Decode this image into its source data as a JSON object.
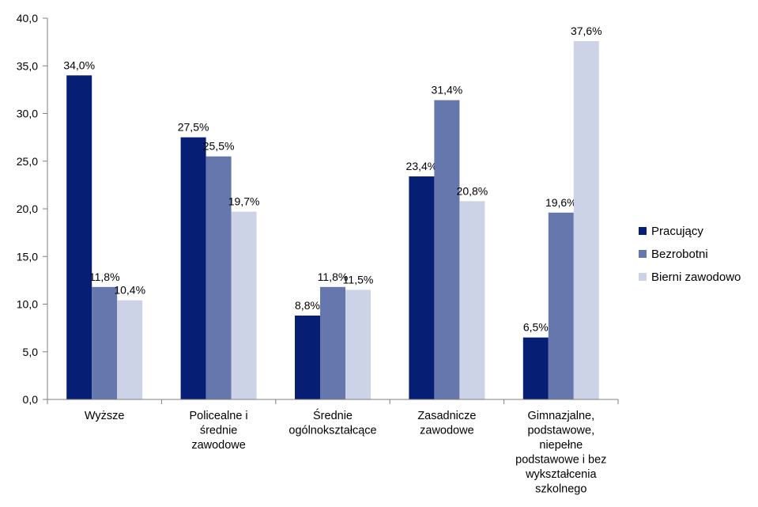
{
  "chart_data": {
    "type": "bar",
    "categories": [
      [
        "Wyższe"
      ],
      [
        "Policealne i",
        "średnie",
        "zawodowe"
      ],
      [
        "Średnie",
        "ogólnokształcące"
      ],
      [
        "Zasadnicze",
        "zawodowe"
      ],
      [
        "Gimnazjalne,",
        "podstawowe,",
        "niepełne",
        "podstawowe i bez",
        "wykształcenia",
        "szkolnego"
      ]
    ],
    "series": [
      {
        "name": "Pracujący",
        "color": "#061f74",
        "values": [
          34.0,
          27.5,
          8.8,
          23.4,
          6.5
        ],
        "labels": [
          "34,0%",
          "27,5%",
          "8,8%",
          "23,4%",
          "6,5%"
        ]
      },
      {
        "name": "Bezrobotni",
        "color": "#6677ae",
        "values": [
          11.8,
          25.5,
          11.8,
          31.4,
          19.6
        ],
        "labels": [
          "11,8%",
          "25,5%",
          "11,8%",
          "31,4%",
          "19,6%"
        ]
      },
      {
        "name": "Bierni zawodowo",
        "color": "#cdd3e6",
        "values": [
          10.4,
          19.7,
          11.5,
          20.8,
          37.6
        ],
        "labels": [
          "10,4%",
          "19,7%",
          "11,5%",
          "20,8%",
          "37,6%"
        ]
      }
    ],
    "yticks": [
      "0,0",
      "5,0",
      "10,0",
      "15,0",
      "20,0",
      "25,0",
      "30,0",
      "35,0",
      "40,0"
    ],
    "ylim": [
      0,
      40
    ],
    "title": "",
    "xlabel": "",
    "ylabel": "",
    "grid": false,
    "legend_position": "right"
  }
}
